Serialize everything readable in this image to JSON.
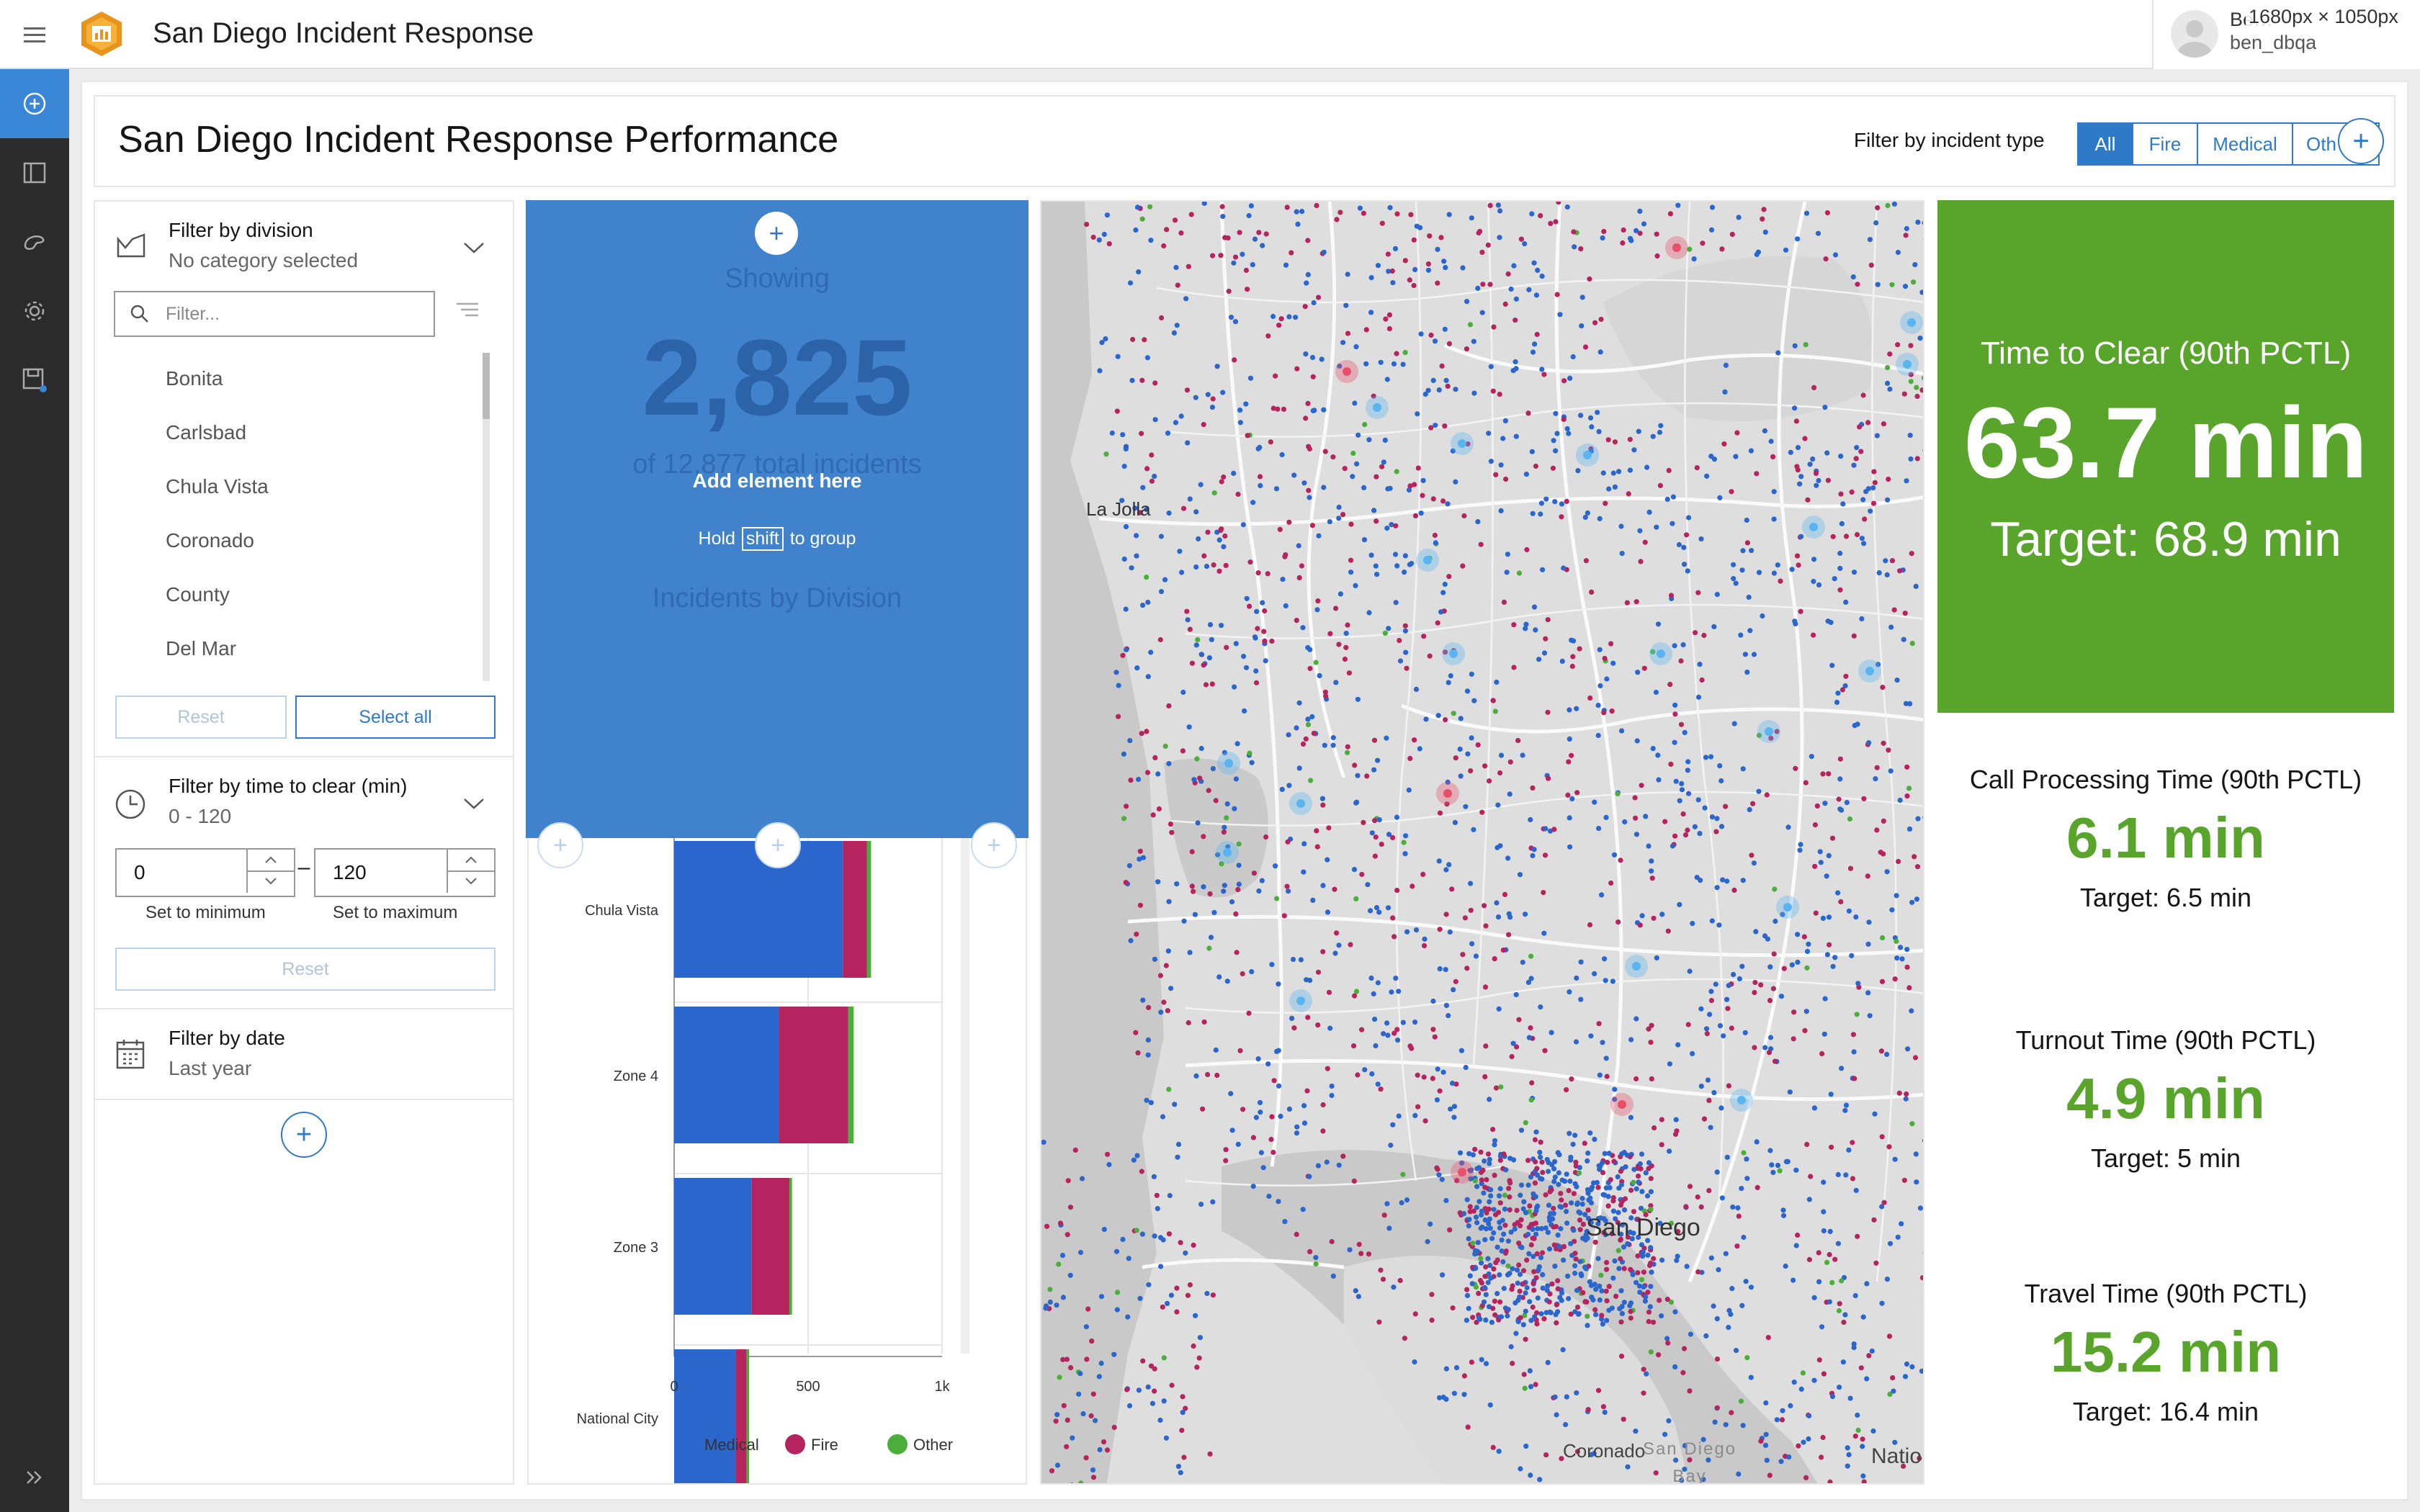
{
  "app": {
    "title": "San Diego Incident Response"
  },
  "user": {
    "name": "Be…",
    "id": "ben_dbqa",
    "dimension_overlay": "1680px × 1050px"
  },
  "dashboard": {
    "title": "San Diego Incident Response Performance"
  },
  "incident_filter": {
    "label": "Filter by incident type",
    "options": [
      "All",
      "Fire",
      "Medical",
      "Oth"
    ],
    "selected": "All"
  },
  "division_filter": {
    "title": "Filter by division",
    "subtitle": "No category selected",
    "search_placeholder": "Filter...",
    "items": [
      "Bonita",
      "Carlsbad",
      "Chula Vista",
      "Coronado",
      "County",
      "Del Mar"
    ],
    "reset_label": "Reset",
    "select_all_label": "Select all"
  },
  "time_filter": {
    "title": "Filter by time to clear (min)",
    "subtitle": "0 - 120",
    "min_value": "0",
    "max_value": "120",
    "dash": "–",
    "min_label": "Set to minimum",
    "max_label": "Set to maximum",
    "reset_label": "Reset"
  },
  "date_filter": {
    "title": "Filter by date",
    "subtitle": "Last year"
  },
  "overlay": {
    "showing": "Showing",
    "count": "2,825",
    "total": "of 12,877 total incidents",
    "add_element": "Add element here",
    "hold_prefix": "Hold",
    "hold_key": "shift",
    "hold_suffix": "to group",
    "chart_title": "Incidents by Division"
  },
  "chart_data": {
    "type": "bar",
    "orientation": "horizontal",
    "stacked": true,
    "title": "Incidents by Division",
    "categories": [
      "Chula Vista",
      "Zone 4",
      "Zone 3",
      "National City"
    ],
    "series": [
      {
        "name": "Medical",
        "color": "#2b66cc",
        "values": [
          630,
          390,
          290,
          230
        ]
      },
      {
        "name": "Fire",
        "color": "#b5245f",
        "values": [
          90,
          260,
          140,
          40
        ]
      },
      {
        "name": "Other",
        "color": "#4cae3a",
        "values": [
          15,
          20,
          10,
          10
        ]
      }
    ],
    "xlim": [
      0,
      1000
    ],
    "x_ticks": [
      "0",
      "500",
      "1k"
    ],
    "legend_position": "bottom"
  },
  "map": {
    "labels": [
      "La Jolla",
      "San Diego",
      "Coronado",
      "San Diego Bay",
      "Natio"
    ],
    "point_colors": {
      "medical": "#2b66cc",
      "fire": "#b5245f",
      "other": "#4cae3a"
    }
  },
  "kpis": [
    {
      "title": "Time to Clear (90th PCTL)",
      "value": "63.7 min",
      "target": "Target: 68.9 min"
    },
    {
      "title": "Call Processing Time (90th PCTL)",
      "value": "6.1 min",
      "target": "Target: 6.5 min"
    },
    {
      "title": "Turnout Time (90th PCTL)",
      "value": "4.9 min",
      "target": "Target: 5 min"
    },
    {
      "title": "Travel Time (90th PCTL)",
      "value": "15.2 min",
      "target": "Target: 16.4 min"
    }
  ],
  "colors": {
    "accent": "#2f7ac8",
    "kpi_green": "#59a52c",
    "rail": "#2b2b2b"
  }
}
